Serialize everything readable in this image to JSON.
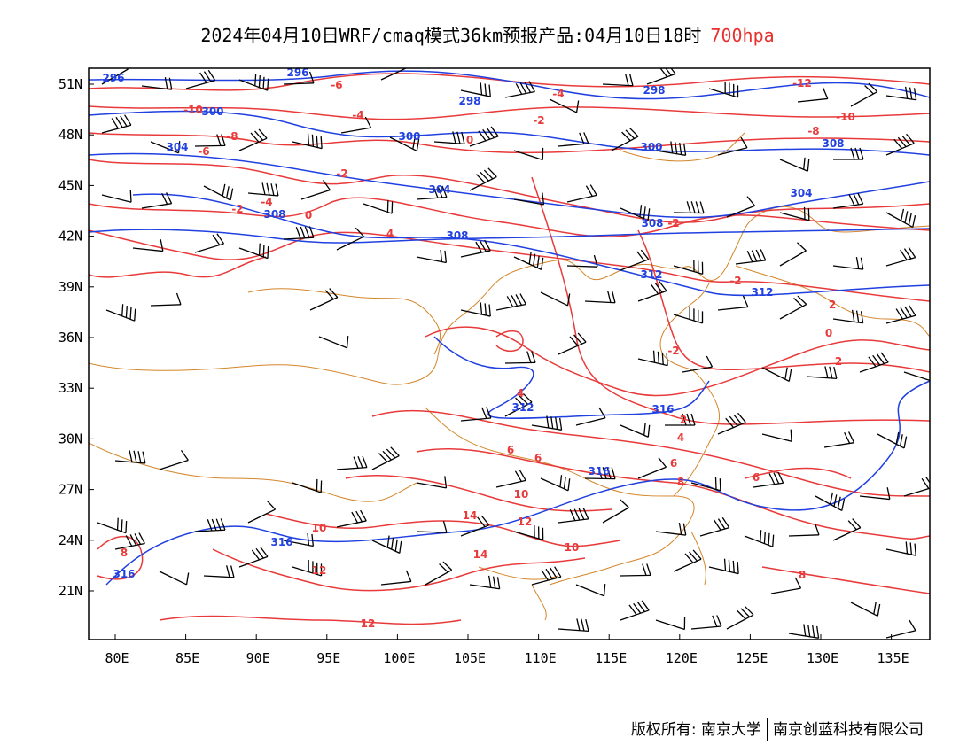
{
  "title": "2024年04月10日WRF/cmaq模式36km预报产品:04月10日18时",
  "level": "700hpa",
  "colors": {
    "height_contour": "#2040e0",
    "temp_contour": "#e83a3a",
    "border": "#d4862a",
    "barb": "#000000"
  },
  "axes": {
    "lon_labels": [
      "80E",
      "85E",
      "90E",
      "95E",
      "100E",
      "105E",
      "110E",
      "115E",
      "120E",
      "125E",
      "130E",
      "135E"
    ],
    "lat_labels": [
      "51N",
      "48N",
      "45N",
      "42N",
      "39N",
      "36N",
      "33N",
      "30N",
      "27N",
      "24N",
      "21N"
    ]
  },
  "contour_labels": {
    "height": [
      "296",
      "296",
      "298",
      "298",
      "300",
      "300",
      "300",
      "304",
      "304",
      "304",
      "308",
      "308",
      "308",
      "308",
      "312",
      "312",
      "312",
      "316",
      "316",
      "316",
      "316"
    ],
    "temperature": [
      "-12",
      "-10",
      "-10",
      "-8",
      "-8",
      "-6",
      "-6",
      "-4",
      "-4",
      "-4",
      "-2",
      "-2",
      "-2",
      "-2",
      "-2",
      "-2",
      "0",
      "0",
      "0",
      "2",
      "2",
      "2",
      "4",
      "4",
      "4",
      "6",
      "6",
      "6",
      "6",
      "8",
      "8",
      "8",
      "10",
      "10",
      "10",
      "12",
      "12",
      "12",
      "14",
      "14"
    ]
  },
  "footer": {
    "left": "版权所有: 南京大学",
    "right": "南京创蓝科技有限公司"
  }
}
